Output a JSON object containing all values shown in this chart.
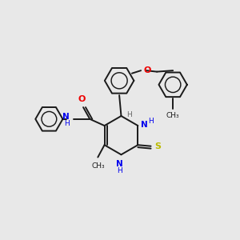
{
  "bg_color": "#e8e8e8",
  "bond_color": "#1a1a1a",
  "N_color": "#0000ee",
  "O_color": "#ee0000",
  "S_color": "#bbbb00",
  "lw": 1.4,
  "figsize": [
    3.0,
    3.0
  ],
  "dpi": 100,
  "xlim": [
    0,
    10
  ],
  "ylim": [
    0,
    10
  ]
}
